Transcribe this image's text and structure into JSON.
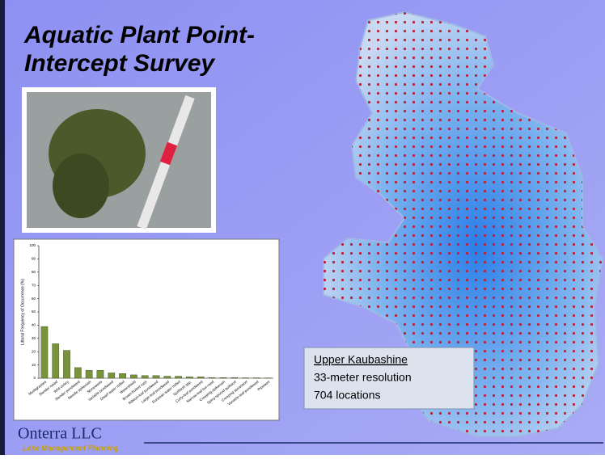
{
  "slide": {
    "title_line1": "Aquatic Plant Point-",
    "title_line2": "Intercept Survey",
    "info": {
      "name": "Upper Kaubashine",
      "resolution": "33-meter resolution",
      "locations": "704 locations"
    },
    "logo": {
      "name": "Onterra LLC",
      "tagline": "Lake Management Planning"
    }
  },
  "chart_data": {
    "type": "bar",
    "y_label": "Littoral Frequency of Occurrence (%)",
    "categories": [
      "Muskgrasses",
      "Slender naiad",
      "Wild celery",
      "Slender pondweed",
      "Needle spikerush",
      "Stoneworts",
      "Variable pondweed",
      "Dwarf water milfoil",
      "Watershield",
      "Brown-fruited rush",
      "Ribbon-leaf pondweed",
      "Large-leaf pondweed",
      "Eurasian water milfoil",
      "Quillwort spp.",
      "Curly-leaf pondweed",
      "Narrow-leaf bur-reed",
      "Creeping spikerush",
      "Spiny-spored quillwort",
      "Creeping spearwort",
      "Variable-leaf pondweed",
      "Pipewort"
    ],
    "values": [
      39,
      26,
      21,
      8,
      6,
      6,
      4,
      3.5,
      2.5,
      2,
      2,
      1.5,
      1.5,
      1,
      1,
      0.5,
      0.5,
      0.5,
      0.3,
      0.3,
      0.2
    ],
    "color": "#77933c",
    "ylim": [
      0,
      100
    ],
    "yticks": [
      0,
      10,
      20,
      30,
      40,
      50,
      60,
      70,
      80,
      90,
      100
    ]
  }
}
